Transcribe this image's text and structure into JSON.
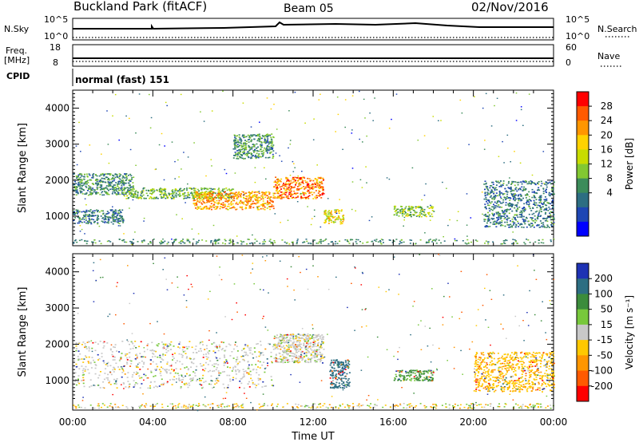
{
  "header": {
    "site": "Buckland Park (fitACF)",
    "beam": "Beam 05",
    "date": "02/Nov/2016"
  },
  "strips": {
    "nsky_label": "N.Sky",
    "nsky_top": "10^5",
    "nsky_bottom": "10^0",
    "nsearch_label": "N.Search",
    "nsearch_top": "10^5",
    "nsearch_bottom": "10^0",
    "freq_label": "Freq.",
    "freq_unit": "[MHz]",
    "freq_top": "18",
    "freq_bottom": "8",
    "nave_label": "Nave",
    "nave_top": "60",
    "nave_bottom": "0",
    "cpid_label": "CPID",
    "cpid_value": "normal (fast) 151"
  },
  "chart_data": [
    {
      "type": "heatmap",
      "name": "power",
      "ylabel": "Slant Range [km]",
      "xlabel": "Time UT",
      "xlim": [
        0,
        24
      ],
      "ylim": [
        180,
        4500
      ],
      "yticks": [
        1000,
        2000,
        3000,
        4000
      ],
      "xticks": [
        "00:00",
        "04:00",
        "08:00",
        "12:00",
        "16:00",
        "20:00",
        "00:00"
      ],
      "colorbar": {
        "label": "Power [dB]",
        "ticks": [
          "28",
          "24",
          "20",
          "16",
          "12",
          "8",
          "4"
        ],
        "colors": [
          "#ff0000",
          "#ff5a00",
          "#ff9600",
          "#ffd200",
          "#c8dc00",
          "#82c832",
          "#3c8c5a",
          "#2d6e82",
          "#1e46b4",
          "#0000ff"
        ]
      },
      "bands": [
        {
          "start": 0.0,
          "end": 2.5,
          "range_low": 800,
          "range_high": 1200,
          "value": 8
        },
        {
          "start": 0.0,
          "end": 3.0,
          "range_low": 1600,
          "range_high": 2200,
          "value": 10
        },
        {
          "start": 2.5,
          "end": 8.0,
          "range_low": 1500,
          "range_high": 1800,
          "value": 13
        },
        {
          "start": 6.0,
          "end": 10.0,
          "range_low": 1200,
          "range_high": 1700,
          "value": 22
        },
        {
          "start": 8.0,
          "end": 10.0,
          "range_low": 2600,
          "range_high": 3300,
          "value": 10
        },
        {
          "start": 10.0,
          "end": 12.5,
          "range_low": 1500,
          "range_high": 2100,
          "value": 24
        },
        {
          "start": 12.5,
          "end": 13.5,
          "range_low": 800,
          "range_high": 1200,
          "value": 18
        },
        {
          "start": 16.0,
          "end": 18.0,
          "range_low": 1000,
          "range_high": 1300,
          "value": 14
        },
        {
          "start": 20.5,
          "end": 24.0,
          "range_low": 700,
          "range_high": 2000,
          "value": 8
        }
      ]
    },
    {
      "type": "heatmap",
      "name": "velocity",
      "ylabel": "Slant Range [km]",
      "xlabel": "Time UT",
      "xlim": [
        0,
        24
      ],
      "ylim": [
        180,
        4500
      ],
      "yticks": [
        1000,
        2000,
        3000,
        4000
      ],
      "xticks": [
        "00:00",
        "04:00",
        "08:00",
        "12:00",
        "16:00",
        "20:00",
        "00:00"
      ],
      "colorbar": {
        "label": "Velocity [m s⁻¹]",
        "ticks": [
          "200",
          "100",
          "50",
          "15",
          "-15",
          "-50",
          "-100",
          "-200"
        ],
        "colors": [
          "#1e32b4",
          "#2d6e82",
          "#3c8c3c",
          "#78c83c",
          "#c8c8c8",
          "#ffc800",
          "#ff9600",
          "#ff5a00",
          "#ff0000"
        ]
      },
      "bands": [
        {
          "start": 0.0,
          "end": 10.0,
          "range_low": 800,
          "range_high": 2100,
          "value": 0
        },
        {
          "start": 10.0,
          "end": 12.5,
          "range_low": 1500,
          "range_high": 2300,
          "value": 0
        },
        {
          "start": 12.8,
          "end": 13.8,
          "range_low": 800,
          "range_high": 1600,
          "value": 150
        },
        {
          "start": 16.0,
          "end": 18.0,
          "range_low": 1000,
          "range_high": 1300,
          "value": 60
        },
        {
          "start": 20.0,
          "end": 24.0,
          "range_low": 700,
          "range_high": 1800,
          "value": -40
        }
      ]
    }
  ],
  "xaxis_title": "Time UT"
}
